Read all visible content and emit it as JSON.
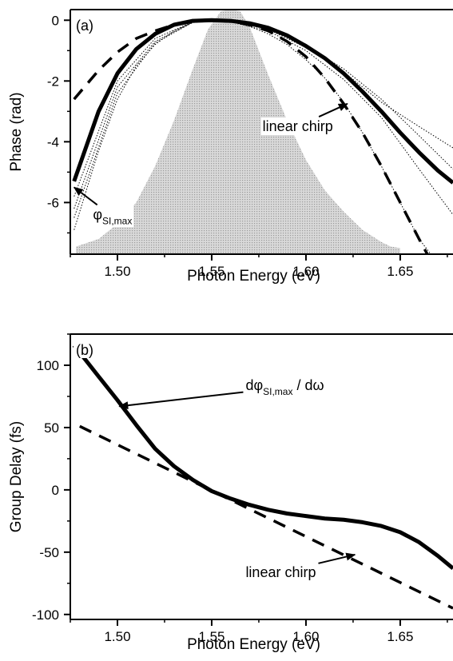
{
  "chart_data": [
    {
      "panel": "(a)",
      "type": "line",
      "xlabel": "Photon Energy (eV)",
      "ylabel": "Phase (rad)",
      "xlim": [
        1.475,
        1.678
      ],
      "ylim": [
        -7.7,
        0.35
      ],
      "xticks": [
        "1.50",
        "1.55",
        "1.60",
        "1.65"
      ],
      "yticks": [
        "0",
        "-2",
        "-4",
        "-6"
      ],
      "grid": false,
      "spectrum_shading": {
        "color": "#c8c8c8",
        "x": [
          1.478,
          1.49,
          1.5,
          1.51,
          1.52,
          1.53,
          1.54,
          1.548,
          1.555,
          1.56,
          1.565,
          1.57,
          1.58,
          1.59,
          1.6,
          1.61,
          1.62,
          1.63,
          1.64,
          1.645,
          1.65
        ],
        "y": [
          -7.45,
          -7.2,
          -6.7,
          -6.0,
          -4.8,
          -3.3,
          -1.6,
          -0.3,
          0.3,
          0.35,
          0.3,
          -0.2,
          -1.8,
          -3.3,
          -4.6,
          -5.6,
          -6.3,
          -6.9,
          -7.3,
          -7.45,
          -7.5
        ]
      },
      "series": [
        {
          "style": "solid-thick",
          "x": [
            1.477,
            1.49,
            1.5,
            1.51,
            1.52,
            1.53,
            1.54,
            1.55,
            1.56,
            1.57,
            1.58,
            1.59,
            1.6,
            1.61,
            1.62,
            1.63,
            1.64,
            1.65,
            1.66,
            1.67,
            1.678
          ],
          "y": [
            -5.3,
            -3.0,
            -1.75,
            -0.95,
            -0.45,
            -0.15,
            -0.02,
            0.0,
            -0.02,
            -0.1,
            -0.25,
            -0.5,
            -0.85,
            -1.25,
            -1.75,
            -2.35,
            -3.0,
            -3.7,
            -4.35,
            -4.95,
            -5.35
          ]
        },
        {
          "style": "dashed",
          "x": [
            1.477,
            1.49,
            1.5,
            1.51,
            1.52,
            1.53,
            1.54,
            1.55,
            1.56,
            1.57,
            1.58,
            1.59,
            1.6,
            1.61,
            1.62,
            1.63,
            1.64,
            1.65,
            1.66,
            1.667
          ],
          "y": [
            -2.6,
            -1.65,
            -1.05,
            -0.6,
            -0.35,
            -0.15,
            -0.03,
            0.0,
            -0.04,
            -0.15,
            -0.35,
            -0.7,
            -1.2,
            -1.9,
            -2.75,
            -3.7,
            -4.8,
            -6.0,
            -7.2,
            -8.0
          ]
        },
        {
          "style": "dotted",
          "x": [
            1.477,
            1.49,
            1.5,
            1.51,
            1.52,
            1.53,
            1.54,
            1.55,
            1.56,
            1.57,
            1.58,
            1.59,
            1.6,
            1.61,
            1.62,
            1.63,
            1.64,
            1.65,
            1.66,
            1.67
          ],
          "y": [
            -6.9,
            -4.3,
            -2.6,
            -1.5,
            -0.8,
            -0.35,
            -0.08,
            0.0,
            -0.05,
            -0.2,
            -0.45,
            -0.8,
            -1.3,
            -1.9,
            -2.7,
            -3.7,
            -4.8,
            -6.0,
            -7.2,
            -8.0
          ]
        },
        {
          "style": "dotted",
          "x": [
            1.477,
            1.5,
            1.52,
            1.54,
            1.55,
            1.56,
            1.58,
            1.6,
            1.62,
            1.64,
            1.66,
            1.678
          ],
          "y": [
            -6.2,
            -2.2,
            -0.7,
            -0.06,
            0.0,
            -0.03,
            -0.3,
            -0.9,
            -1.7,
            -2.7,
            -3.5,
            -4.2
          ]
        },
        {
          "style": "dotted",
          "x": [
            1.477,
            1.5,
            1.52,
            1.54,
            1.55,
            1.56,
            1.58,
            1.6,
            1.62,
            1.64,
            1.66,
            1.678
          ],
          "y": [
            -5.8,
            -2.0,
            -0.6,
            -0.05,
            0.0,
            -0.03,
            -0.28,
            -0.85,
            -1.6,
            -2.6,
            -3.8,
            -4.9
          ]
        },
        {
          "style": "dotted",
          "x": [
            1.477,
            1.5,
            1.52,
            1.54,
            1.55,
            1.56,
            1.58,
            1.6,
            1.62,
            1.64,
            1.66,
            1.678
          ],
          "y": [
            -6.5,
            -2.4,
            -0.75,
            -0.07,
            0.0,
            -0.04,
            -0.35,
            -1.0,
            -1.95,
            -3.2,
            -4.9,
            -6.4
          ]
        }
      ],
      "annotations": [
        {
          "text": "linear chirp",
          "x": 1.577,
          "y": -3.65,
          "arrow_to": [
            1.622,
            -2.75
          ]
        },
        {
          "text": "φ",
          "sub": "SI,max",
          "x": 1.487,
          "y": -6.55,
          "arrow_to": [
            1.477,
            -5.5
          ]
        }
      ]
    },
    {
      "panel": "(b)",
      "type": "line",
      "xlabel": "Photon Energy (eV)",
      "ylabel": "Group Delay (fs)",
      "xlim": [
        1.475,
        1.678
      ],
      "ylim": [
        -104,
        125
      ],
      "xticks": [
        "1.50",
        "1.55",
        "1.60",
        "1.65"
      ],
      "yticks": [
        "100",
        "50",
        "0",
        "-50",
        "-100"
      ],
      "grid": false,
      "series": [
        {
          "style": "solid-thick",
          "x": [
            1.477,
            1.49,
            1.5,
            1.51,
            1.52,
            1.53,
            1.54,
            1.55,
            1.56,
            1.57,
            1.58,
            1.59,
            1.6,
            1.61,
            1.62,
            1.63,
            1.64,
            1.65,
            1.66,
            1.67,
            1.678
          ],
          "y": [
            116,
            91,
            72,
            52,
            33,
            19,
            8,
            -1,
            -7,
            -12,
            -16,
            -19,
            -21,
            -23,
            -24,
            -26,
            -29,
            -34,
            -42,
            -53,
            -63
          ]
        },
        {
          "style": "dashed",
          "x": [
            1.48,
            1.678
          ],
          "y": [
            51,
            -95
          ]
        }
      ],
      "annotations": [
        {
          "text": "dφ",
          "sub": "SI,max",
          "suffix": " / dω",
          "x": 1.568,
          "y": 80,
          "arrow_to": [
            1.501,
            67
          ]
        },
        {
          "text": "linear chirp",
          "x": 1.568,
          "y": -70,
          "arrow_to": [
            1.626,
            -52
          ]
        }
      ]
    }
  ]
}
